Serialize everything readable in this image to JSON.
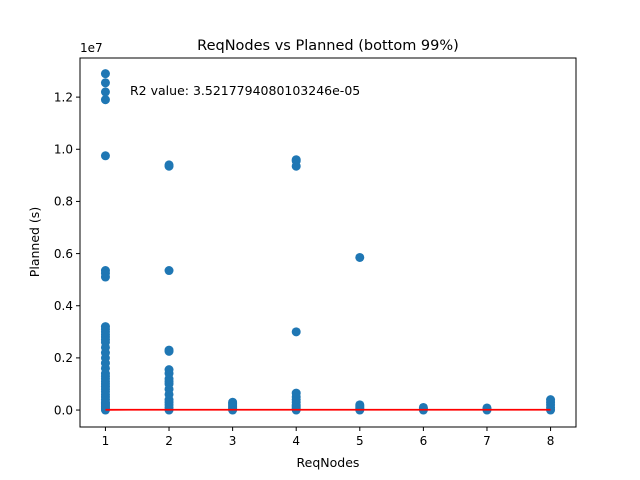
{
  "chart_data": {
    "type": "scatter",
    "title": "ReqNodes vs Planned (bottom 99%)",
    "xlabel": "ReqNodes",
    "ylabel": "Planned (s)",
    "y_offset_label": "1e7",
    "annotation": "R2 value: 3.5217794080103246e-05",
    "xlim": [
      0.6,
      8.4
    ],
    "ylim": [
      -0.065,
      1.35
    ],
    "x_ticks": [
      1,
      2,
      3,
      4,
      5,
      6,
      7,
      8
    ],
    "x_tick_labels": [
      "1",
      "2",
      "3",
      "4",
      "5",
      "6",
      "7",
      "8"
    ],
    "y_ticks": [
      0.0,
      0.2,
      0.4,
      0.6,
      0.8,
      1.0,
      1.2
    ],
    "y_tick_labels": [
      "0.0",
      "0.2",
      "0.4",
      "0.6",
      "0.8",
      "1.0",
      "1.2"
    ],
    "grid": false,
    "colors": {
      "points": "#1f77b4",
      "fit_line": "#ff0000"
    },
    "points": [
      {
        "x": 1,
        "y": [
          0,
          0.005,
          0.01,
          0.015,
          0.02,
          0.025,
          0.03,
          0.04,
          0.05,
          0.06,
          0.07,
          0.08,
          0.09,
          0.1,
          0.11,
          0.12,
          0.13,
          0.14,
          0.16,
          0.18,
          0.2,
          0.22,
          0.24,
          0.26,
          0.27,
          0.28,
          0.29,
          0.3,
          0.31,
          0.32,
          0.51,
          0.525,
          0.535,
          0.975,
          1.19,
          1.22,
          1.255,
          1.29
        ]
      },
      {
        "x": 2,
        "y": [
          0,
          0.01,
          0.02,
          0.03,
          0.04,
          0.06,
          0.08,
          0.1,
          0.11,
          0.12,
          0.14,
          0.155,
          0.225,
          0.23,
          0.535,
          0.935,
          0.94
        ]
      },
      {
        "x": 3,
        "y": [
          0,
          0.005,
          0.01,
          0.015,
          0.02,
          0.025,
          0.03
        ]
      },
      {
        "x": 4,
        "y": [
          0,
          0.005,
          0.01,
          0.015,
          0.02,
          0.03,
          0.04,
          0.05,
          0.065,
          0.3,
          0.935,
          0.955,
          0.96
        ]
      },
      {
        "x": 5,
        "y": [
          0,
          0.005,
          0.01,
          0.015,
          0.02,
          0.585
        ]
      },
      {
        "x": 6,
        "y": [
          0,
          0.005,
          0.01
        ]
      },
      {
        "x": 7,
        "y": [
          0,
          0.004,
          0.008
        ]
      },
      {
        "x": 8,
        "y": [
          0,
          0.01,
          0.02,
          0.03,
          0.04
        ]
      }
    ],
    "fit_line": {
      "x": [
        1,
        8
      ],
      "y": [
        0.001,
        0.0012
      ]
    }
  }
}
